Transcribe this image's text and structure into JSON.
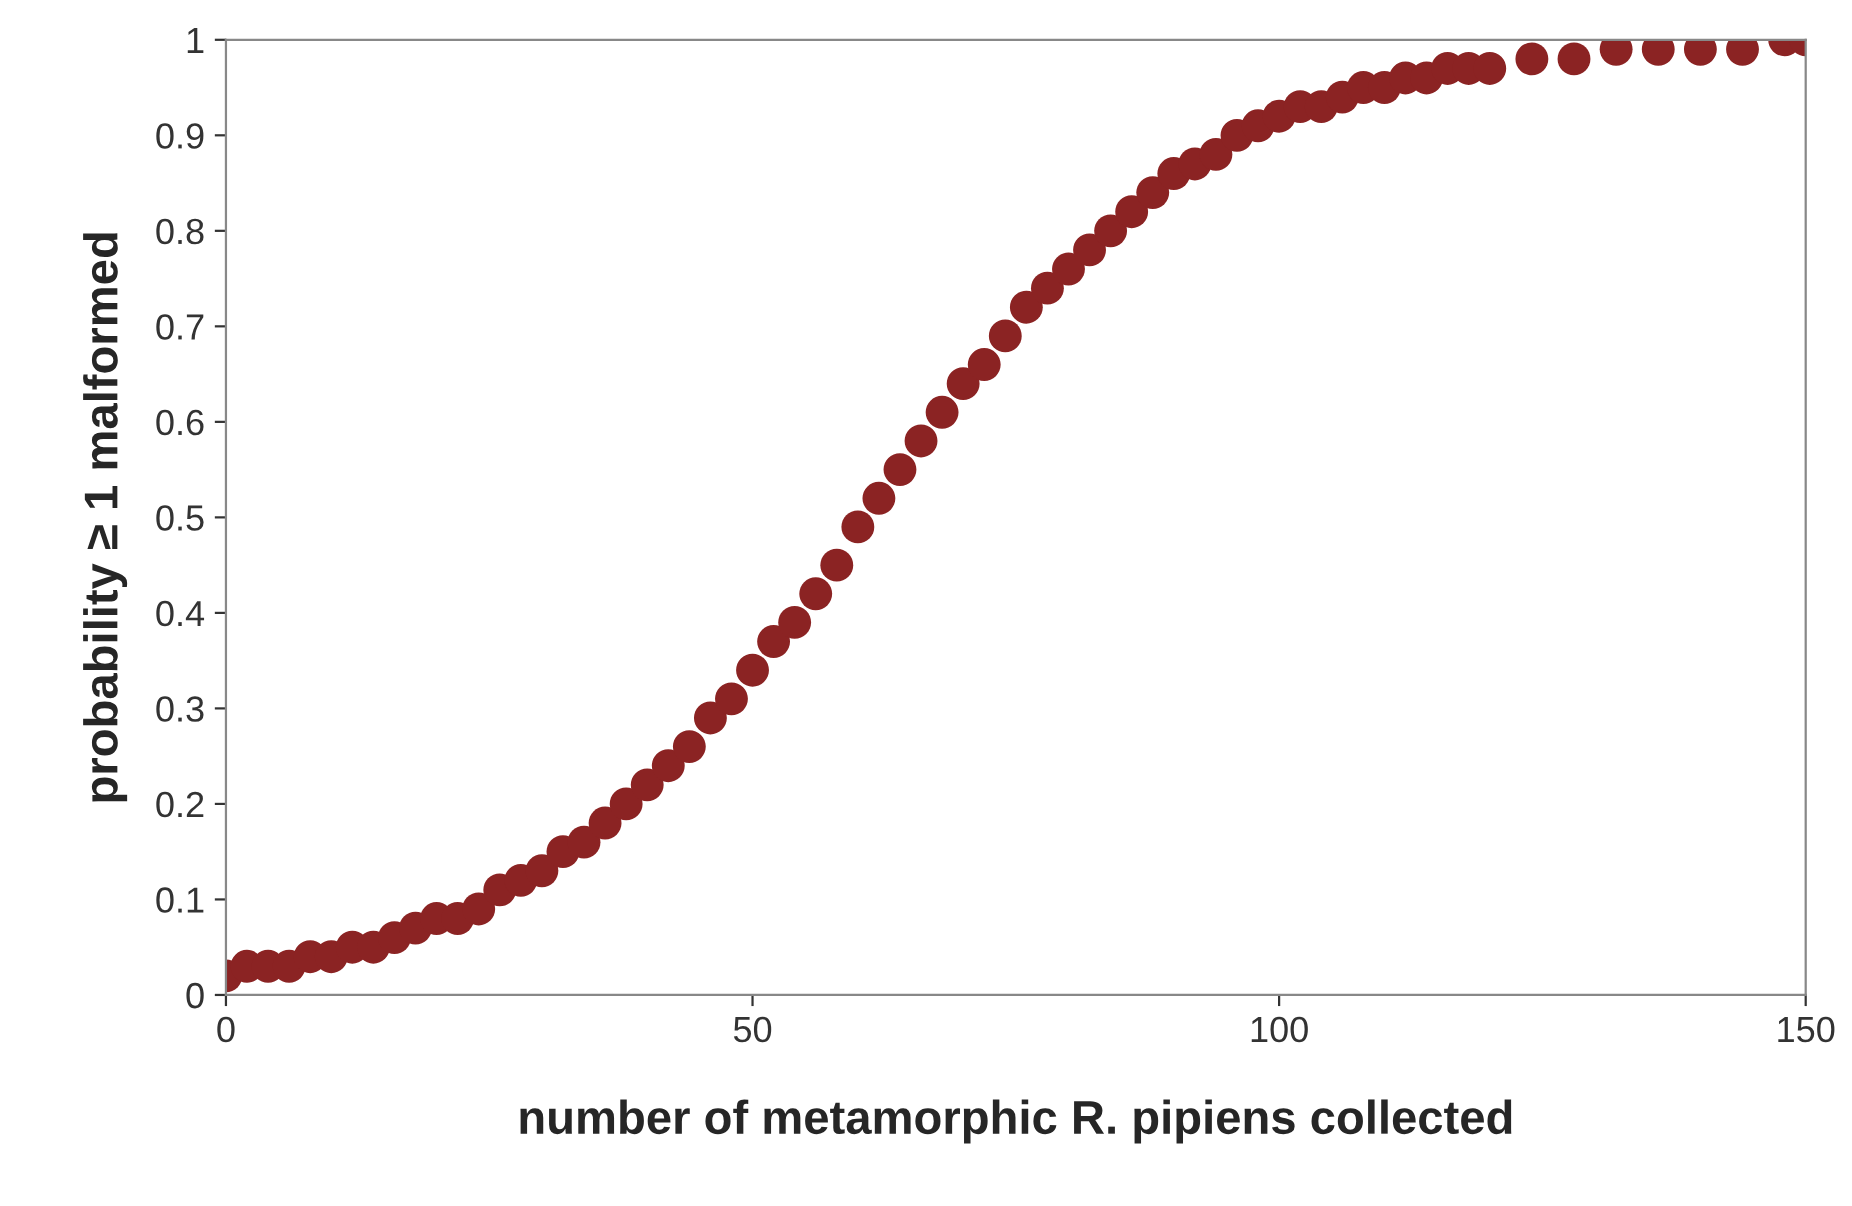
{
  "chart_data": {
    "type": "scatter",
    "xlabel": "number of metamorphic R. pipiens collected",
    "ylabel": "probability ≥ 1 malformed",
    "x": [
      0,
      2,
      4,
      6,
      8,
      10,
      12,
      14,
      16,
      18,
      20,
      22,
      24,
      26,
      28,
      30,
      32,
      34,
      36,
      38,
      40,
      42,
      44,
      46,
      48,
      50,
      52,
      54,
      56,
      58,
      60,
      62,
      64,
      66,
      68,
      70,
      72,
      74,
      76,
      78,
      80,
      82,
      84,
      86,
      88,
      90,
      92,
      94,
      96,
      98,
      100,
      102,
      104,
      106,
      108,
      110,
      112,
      114,
      116,
      118,
      120,
      124,
      128,
      132,
      136,
      140,
      144,
      148,
      150
    ],
    "series": [
      {
        "color": "#8b2323",
        "values": [
          0.02,
          0.03,
          0.03,
          0.03,
          0.04,
          0.04,
          0.05,
          0.05,
          0.06,
          0.07,
          0.08,
          0.08,
          0.09,
          0.11,
          0.12,
          0.13,
          0.15,
          0.16,
          0.18,
          0.2,
          0.22,
          0.24,
          0.26,
          0.29,
          0.31,
          0.34,
          0.37,
          0.39,
          0.42,
          0.45,
          0.49,
          0.52,
          0.55,
          0.58,
          0.61,
          0.64,
          0.66,
          0.69,
          0.72,
          0.74,
          0.76,
          0.78,
          0.8,
          0.82,
          0.84,
          0.86,
          0.87,
          0.88,
          0.9,
          0.91,
          0.92,
          0.93,
          0.93,
          0.94,
          0.95,
          0.95,
          0.96,
          0.96,
          0.97,
          0.97,
          0.97,
          0.98,
          0.98,
          0.99,
          0.99,
          0.99,
          0.99,
          1.0,
          1.0
        ]
      }
    ],
    "xlim": [
      0,
      150
    ],
    "xticks": [
      0,
      50,
      100,
      150
    ],
    "ylim": [
      0,
      1
    ],
    "yticks": [
      0,
      0.1,
      0.2,
      0.3,
      0.4,
      0.5,
      0.6,
      0.7,
      0.8,
      0.9,
      1
    ],
    "marker": "circle",
    "grid": false,
    "legend": false
  }
}
